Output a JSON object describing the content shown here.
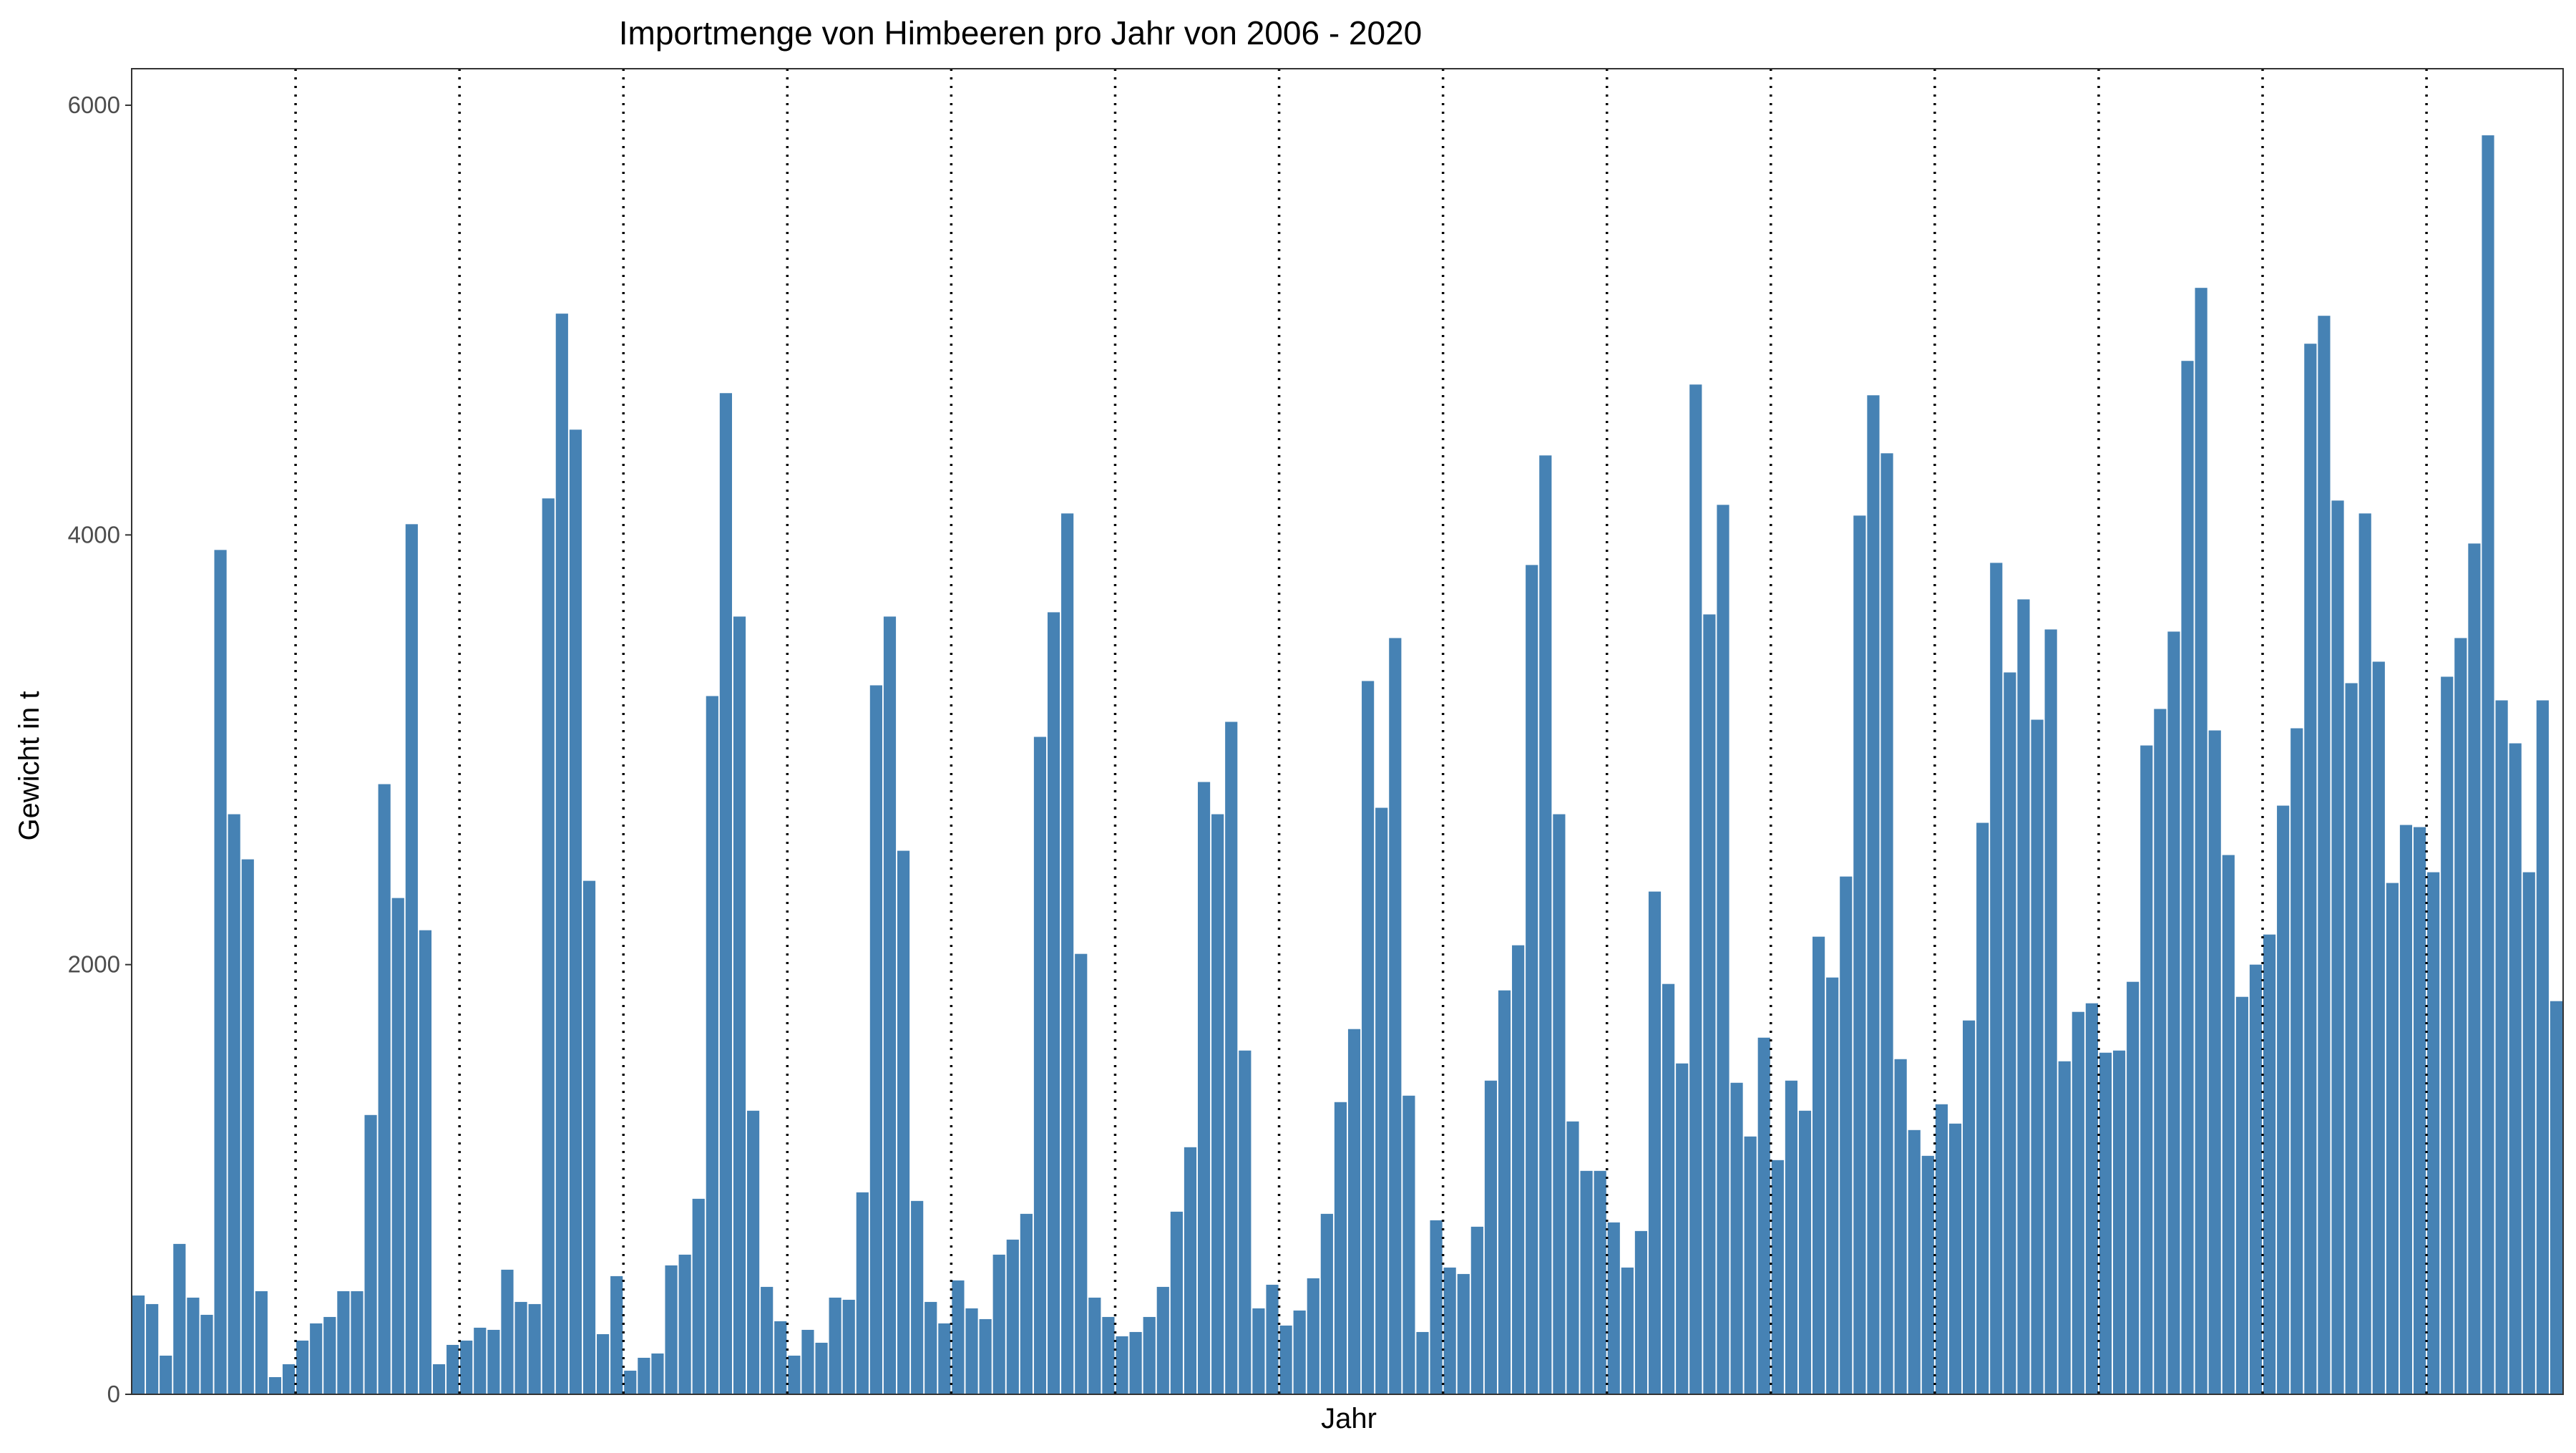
{
  "chart_data": {
    "type": "bar",
    "title": "Importmenge von Himbeeren pro Jahr von 2006 - 2020",
    "xlabel": "Jahr",
    "ylabel": "Gewicht in t",
    "ylim": [
      0,
      6170
    ],
    "yticks": [
      0,
      2000,
      4000,
      6000
    ],
    "grid": false,
    "legend": "none",
    "bar_color": "#4682B4",
    "year_separator_style": "dotted",
    "year_separator_color": "#000000",
    "months_per_year": 12,
    "values": [
      460,
      420,
      180,
      700,
      450,
      370,
      3930,
      2700,
      2490,
      480,
      80,
      140,
      250,
      330,
      360,
      480,
      480,
      1300,
      2840,
      2310,
      4050,
      2160,
      140,
      230,
      250,
      310,
      300,
      580,
      430,
      420,
      4170,
      5030,
      4490,
      2390,
      280,
      550,
      110,
      170,
      190,
      600,
      650,
      910,
      3250,
      4660,
      3620,
      1320,
      500,
      340,
      180,
      300,
      240,
      450,
      440,
      940,
      3300,
      3620,
      2530,
      900,
      430,
      330,
      530,
      400,
      350,
      650,
      720,
      840,
      3060,
      3640,
      4100,
      2050,
      450,
      360,
      270,
      290,
      360,
      500,
      850,
      1150,
      2850,
      2700,
      3130,
      1600,
      400,
      510,
      320,
      390,
      540,
      840,
      1360,
      1700,
      3320,
      2730,
      3520,
      1390,
      290,
      810,
      590,
      560,
      780,
      1460,
      1880,
      2090,
      3860,
      4370,
      2700,
      1270,
      1040,
      1040,
      800,
      590,
      760,
      2340,
      1910,
      1540,
      4700,
      3630,
      4140,
      1450,
      1200,
      1660,
      1090,
      1460,
      1320,
      2130,
      1940,
      2410,
      4090,
      4650,
      4380,
      1560,
      1230,
      1110,
      1350,
      1260,
      1740,
      2660,
      3870,
      3360,
      3700,
      3140,
      3560,
      1550,
      1780,
      1820,
      1590,
      1600,
      1920,
      3020,
      3190,
      3550,
      4810,
      5150,
      3090,
      2510,
      1850,
      2000,
      2140,
      2740,
      3100,
      4890,
      5020,
      4160,
      3310,
      4100,
      3410,
      2380,
      2650,
      2640,
      2430,
      3340,
      3520,
      3960,
      5860,
      3230,
      3030,
      2430,
      3230,
      1830
    ]
  }
}
